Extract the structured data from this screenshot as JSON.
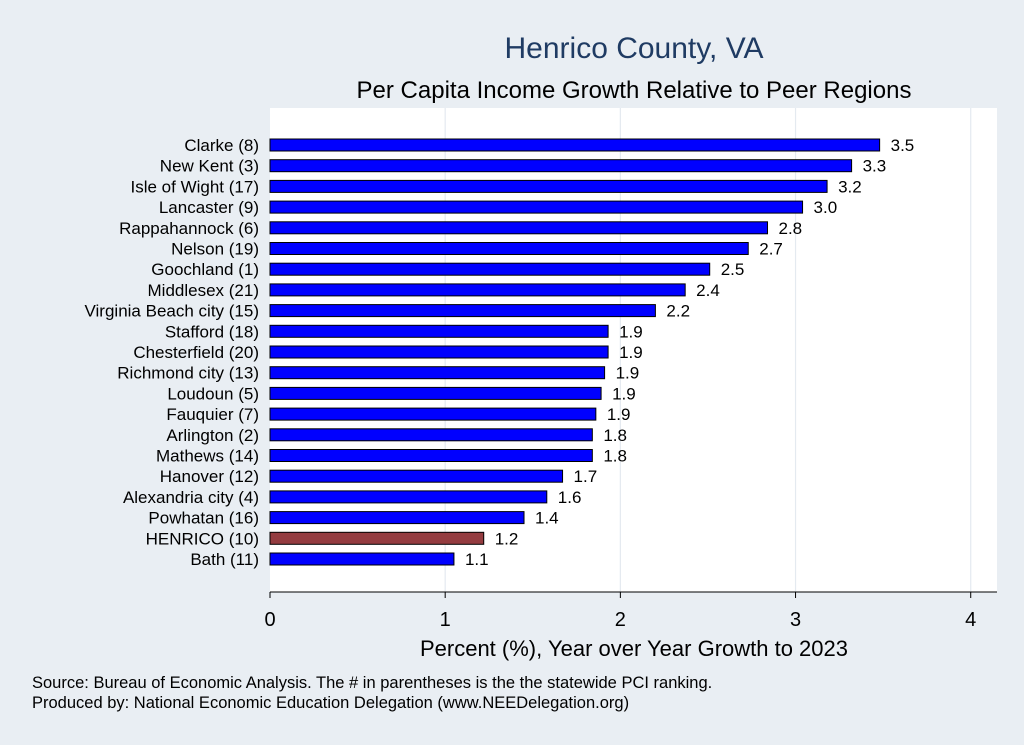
{
  "chart_data": {
    "type": "bar",
    "orientation": "horizontal",
    "title": "Henrico County, VA",
    "subtitle": "Per Capita Income Growth Relative to Peer Regions",
    "categories": [
      "Clarke  (8)",
      "New Kent  (3)",
      "Isle of Wight (17)",
      "Lancaster  (9)",
      "Rappahannock  (6)",
      "Nelson (19)",
      "Goochland  (1)",
      "Middlesex (21)",
      "Virginia Beach city (15)",
      "Stafford (18)",
      "Chesterfield (20)",
      "Richmond city (13)",
      "Loudoun  (5)",
      "Fauquier  (7)",
      "Arlington  (2)",
      "Mathews (14)",
      "Hanover (12)",
      "Alexandria city  (4)",
      "Powhatan (16)",
      "HENRICO (10)",
      "Bath (11)"
    ],
    "values": [
      3.48,
      3.32,
      3.18,
      3.04,
      2.84,
      2.73,
      2.51,
      2.37,
      2.2,
      1.93,
      1.93,
      1.91,
      1.89,
      1.86,
      1.84,
      1.84,
      1.67,
      1.58,
      1.45,
      1.22,
      1.05
    ],
    "data_labels": [
      "3.5",
      "3.3",
      "3.2",
      "3.0",
      "2.8",
      "2.7",
      "2.5",
      "2.4",
      "2.2",
      "1.9",
      "1.9",
      "1.9",
      "1.9",
      "1.9",
      "1.8",
      "1.8",
      "1.7",
      "1.6",
      "1.4",
      "1.2",
      "1.1"
    ],
    "highlight_category": "HENRICO (10)",
    "xlabel": "Percent (%), Year over Year Growth to 2023",
    "xlim": [
      0,
      4.15
    ],
    "xticks": [
      0,
      1,
      2,
      3,
      4
    ],
    "grid": true,
    "legend": "none",
    "colors": {
      "bar": "#0000ff",
      "highlight": "#943c40",
      "background": "#e9eef3",
      "plot_bg": "#ffffff",
      "grid": "#e4eaf0",
      "title": "#1f3b63"
    }
  },
  "notes": [
    "Source: Bureau of Economic Analysis. The # in parentheses is the the statewide PCI ranking.",
    "Produced by: National Economic Education Delegation (www.NEEDelegation.org)"
  ]
}
